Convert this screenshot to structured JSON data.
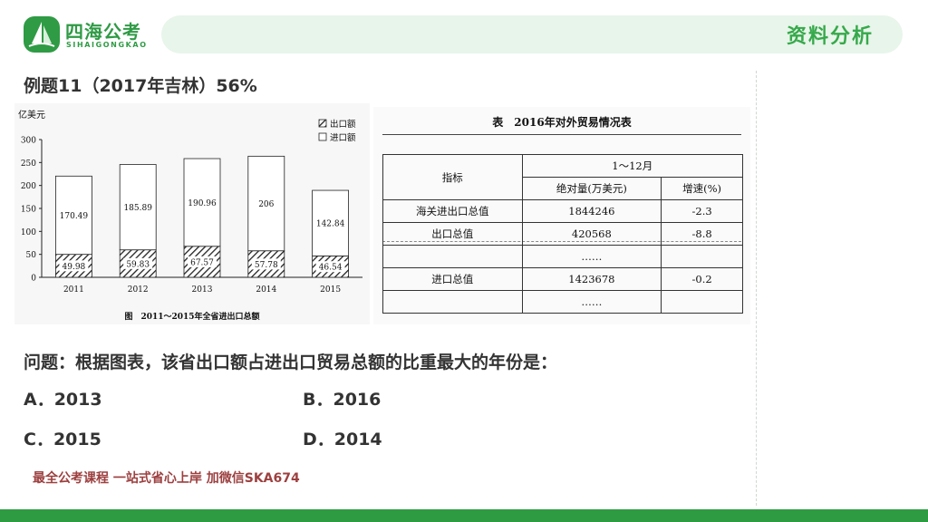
{
  "brand": {
    "name_cn": "四海公考",
    "name_en": "SIHAIGONGKAO"
  },
  "section_tag": "资料分析",
  "example_title": "例题11（2017年吉林）56%",
  "chart_data": {
    "type": "bar",
    "stacked": true,
    "title": "图　2011～2015年全省进出口总额",
    "ylabel": "亿美元",
    "ylim": [
      0,
      300
    ],
    "yticks": [
      "0",
      "50",
      "100",
      "150",
      "200",
      "250",
      "300"
    ],
    "categories": [
      "2011",
      "2012",
      "2013",
      "2014",
      "2015"
    ],
    "legend_placement": "top-right",
    "series": [
      {
        "name": "出口额",
        "values": [
          49.98,
          59.83,
          67.57,
          57.78,
          46.54
        ],
        "value_labels": [
          "49.98",
          "59.83",
          "67.57",
          "57.78",
          "46.54"
        ],
        "pattern": "diagonal-hatch"
      },
      {
        "name": "进口额",
        "values": [
          170.49,
          185.89,
          190.96,
          206,
          142.84
        ],
        "value_labels": [
          "170.49",
          "185.89",
          "190.96",
          "206",
          "142.84"
        ],
        "pattern": "white"
      }
    ]
  },
  "table": {
    "caption": "表　2016年对外贸易情况表",
    "header_indicator": "指标",
    "header_period": "1～12月",
    "header_abs": "绝对量(万美元)",
    "header_growth": "增速(%)",
    "rows": [
      {
        "name": "海关进出口总值",
        "abs": "1844246",
        "growth": "-2.3"
      },
      {
        "name": "出口总值",
        "abs": "420568",
        "growth": "-8.8"
      },
      {
        "name": "",
        "abs": "……",
        "growth": ""
      },
      {
        "name": "进口总值",
        "abs": "1423678",
        "growth": "-0.2"
      },
      {
        "name": "",
        "abs": "……",
        "growth": ""
      }
    ]
  },
  "question": "问题：根据图表，该省出口额占进出口贸易总额的比重最大的年份是：",
  "options": [
    {
      "label": "A．2013"
    },
    {
      "label": "B．2016"
    },
    {
      "label": "C．2015"
    },
    {
      "label": "D．2014"
    }
  ],
  "footer": "最全公考课程 一站式省心上岸 加微信SKA674",
  "colors": {
    "brand_green": "#2f9b45",
    "header_bg": "#e8f5ea",
    "footer_red": "#9d4040"
  }
}
